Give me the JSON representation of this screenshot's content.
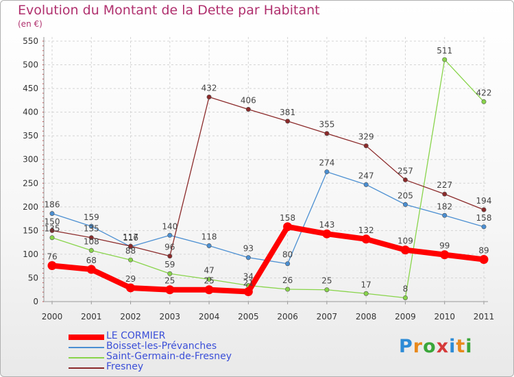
{
  "chart_data": {
    "type": "line",
    "title": "Evolution du Montant de la Dette par Habitant",
    "subtitle": "(en €)",
    "x": [
      "2000",
      "2001",
      "2002",
      "2003",
      "2004",
      "2005",
      "2006",
      "2007",
      "2008",
      "2009",
      "2010",
      "2011"
    ],
    "ylim": [
      0,
      550
    ],
    "yticks": [
      0,
      50,
      100,
      150,
      200,
      250,
      300,
      350,
      400,
      450,
      500,
      550
    ],
    "grid": true,
    "legend_position": "bottom-left",
    "series": [
      {
        "name": "LE CORMIER",
        "color": "#ff0000",
        "values": [
          76,
          68,
          29,
          25,
          25,
          21,
          158,
          143,
          132,
          109,
          99,
          89
        ],
        "labels": [
          "76",
          "68",
          "29",
          "25",
          "25",
          "21",
          "158",
          "143",
          "132",
          "109",
          "99",
          "89"
        ]
      },
      {
        "name": "Boisset-les-Prévanches",
        "color": "#4b8fd2",
        "values": [
          186,
          159,
          116,
          140,
          118,
          93,
          80,
          274,
          247,
          205,
          182,
          158
        ],
        "labels": [
          "186",
          "159",
          "116",
          "140",
          "118",
          "93",
          "80",
          "274",
          "247",
          "205",
          "182",
          "158"
        ]
      },
      {
        "name": "Saint-Germain-de-Fresney",
        "color": "#88d44a",
        "values": [
          135,
          108,
          88,
          59,
          47,
          34,
          26,
          25,
          17,
          8,
          511,
          422
        ],
        "labels": [
          "135",
          "108",
          "88",
          "59",
          "47",
          "34",
          "26",
          "25",
          "17",
          "8",
          "511",
          "422"
        ]
      },
      {
        "name": "Fresney",
        "color": "#8b2a2a",
        "values": [
          150,
          135,
          117,
          96,
          432,
          406,
          381,
          355,
          329,
          257,
          227,
          194
        ],
        "labels": [
          "150",
          "135",
          "117",
          "96",
          "432",
          "406",
          "381",
          "355",
          "329",
          "257",
          "227",
          "194"
        ]
      }
    ]
  },
  "logo": {
    "letters": [
      "P",
      "r",
      "o",
      "x",
      "i",
      "t",
      "i"
    ]
  }
}
